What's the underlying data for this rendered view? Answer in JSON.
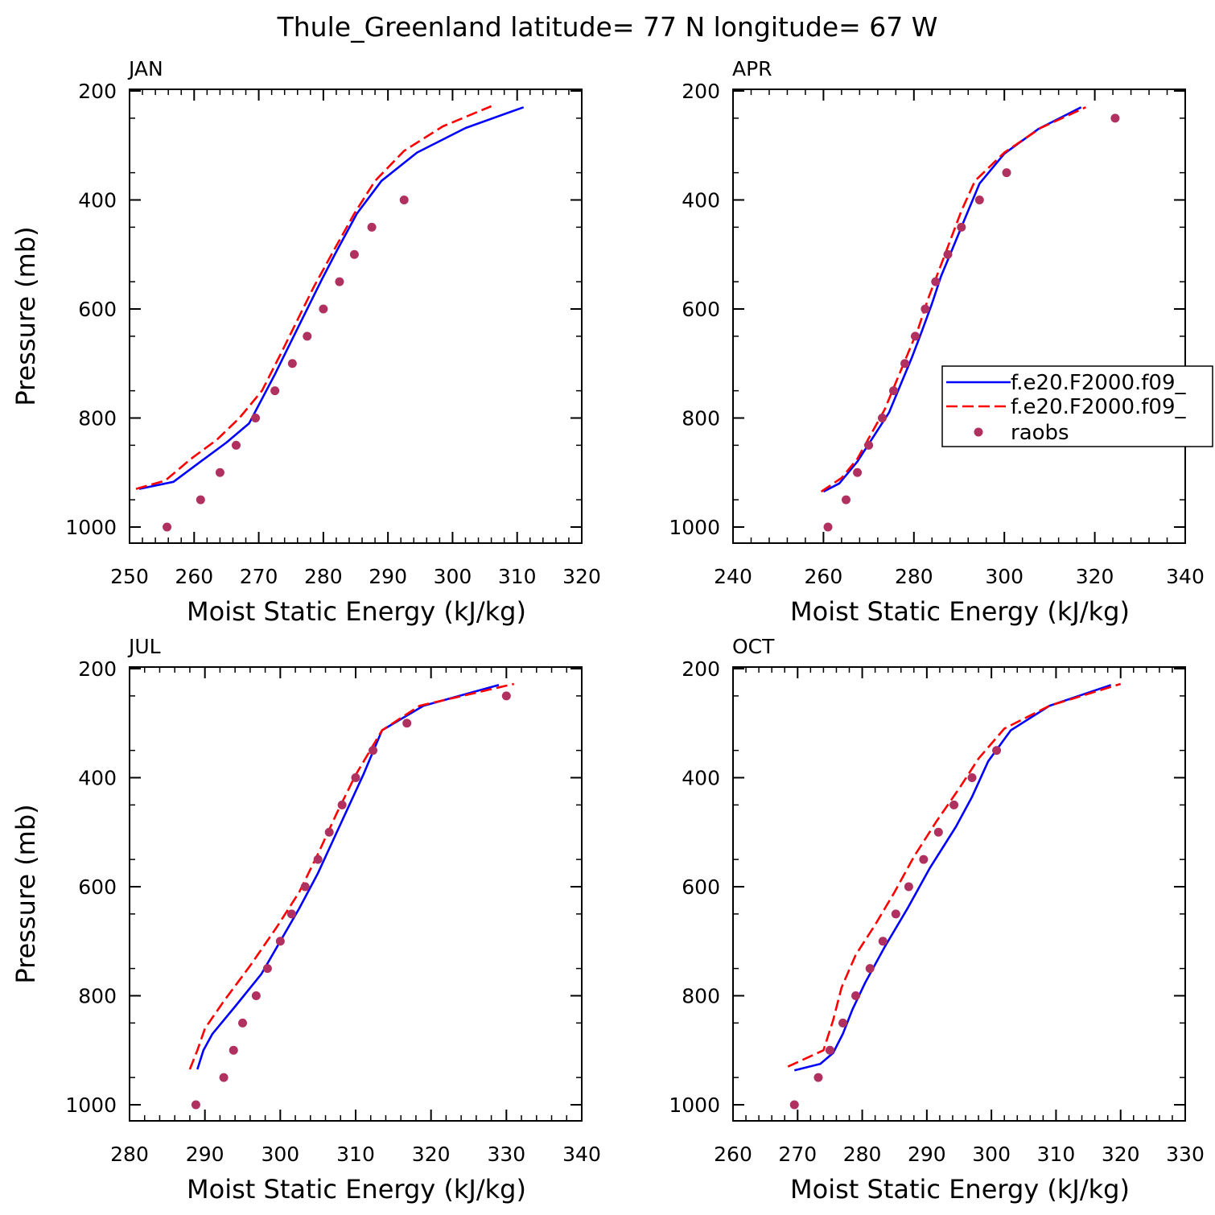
{
  "title": "Thule_Greenland  latitude= 77 N longitude= 67 W",
  "legend": {
    "entries": [
      {
        "label": "f.e20.F2000.f09_",
        "color": "#0000ff",
        "style": "solid"
      },
      {
        "label": "f.e20.F2000.f09_",
        "color": "#ff0000",
        "style": "dashed"
      },
      {
        "label": "raobs",
        "color": "#b03060",
        "style": "marker"
      }
    ]
  },
  "chart_data": [
    {
      "type": "line",
      "panel": "JAN",
      "xlabel": "Moist Static Energy (kJ/kg)",
      "ylabel": "Pressure (mb)",
      "xlim": [
        250,
        320
      ],
      "ylim": [
        1000,
        200
      ],
      "xticks": [
        250,
        260,
        270,
        280,
        290,
        300,
        310,
        320
      ],
      "yticks": [
        200,
        400,
        600,
        800,
        1000
      ],
      "series": [
        {
          "name": "f.e20.F2000.f09_",
          "style": "solid",
          "x": [
            251.5,
            256.8,
            261.0,
            265.0,
            268.5,
            272.5,
            275.2,
            277.5,
            279.8,
            282.0,
            285.2,
            289.0,
            294.5,
            302.0,
            311.0
          ],
          "y": [
            930,
            917,
            880,
            845,
            810,
            720,
            655,
            600,
            545,
            495,
            425,
            365,
            313,
            268,
            230
          ]
        },
        {
          "name": "f.e20.F2000.f09_",
          "style": "dashed",
          "x": [
            251.0,
            255.5,
            259.5,
            263.5,
            267.0,
            270.5,
            273.5,
            276.0,
            278.5,
            281.5,
            284.8,
            288.0,
            292.5,
            298.5,
            306.0
          ],
          "y": [
            930,
            915,
            875,
            840,
            800,
            750,
            680,
            620,
            560,
            495,
            425,
            365,
            310,
            265,
            228
          ]
        },
        {
          "name": "raobs",
          "style": "marker",
          "x": [
            255.8,
            261.0,
            264.0,
            266.5,
            269.5,
            272.5,
            275.2,
            277.5,
            280.0,
            282.5,
            284.8,
            287.5,
            292.5
          ],
          "y": [
            1000,
            950,
            900,
            850,
            800,
            750,
            700,
            650,
            600,
            550,
            500,
            450,
            400
          ]
        }
      ]
    },
    {
      "type": "line",
      "panel": "APR",
      "xlabel": "Moist Static Energy (kJ/kg)",
      "ylabel": "",
      "xlim": [
        240,
        340
      ],
      "ylim": [
        1000,
        200
      ],
      "xticks": [
        240,
        260,
        280,
        300,
        320,
        340
      ],
      "yticks": [
        200,
        400,
        600,
        800,
        1000
      ],
      "series": [
        {
          "name": "f.e20.F2000.f09_",
          "style": "solid",
          "x": [
            260.0,
            263.5,
            267.5,
            271.0,
            274.5,
            277.0,
            279.5,
            281.8,
            284.0,
            286.0,
            288.5,
            291.5,
            294.5,
            300.0,
            307.5,
            317.0
          ],
          "y": [
            935,
            920,
            880,
            835,
            790,
            740,
            690,
            640,
            590,
            540,
            490,
            430,
            370,
            315,
            270,
            230
          ]
        },
        {
          "name": "f.e20.F2000.f09_",
          "style": "dashed",
          "x": [
            259.5,
            264.0,
            267.5,
            270.5,
            273.5,
            276.0,
            278.5,
            281.0,
            283.2,
            285.5,
            288.0,
            290.5,
            293.5,
            300.0,
            308.0,
            318.0
          ],
          "y": [
            935,
            910,
            875,
            830,
            785,
            735,
            685,
            635,
            580,
            530,
            475,
            420,
            365,
            313,
            268,
            230
          ]
        },
        {
          "name": "raobs",
          "style": "marker",
          "x": [
            261.0,
            265.0,
            267.5,
            270.0,
            273.0,
            275.5,
            278.0,
            280.3,
            282.5,
            284.8,
            287.5,
            290.5,
            294.5,
            300.5,
            324.5
          ],
          "y": [
            1000,
            950,
            900,
            850,
            800,
            750,
            700,
            650,
            600,
            550,
            500,
            450,
            400,
            350,
            250
          ]
        }
      ]
    },
    {
      "type": "line",
      "panel": "JUL",
      "xlabel": "Moist Static Energy (kJ/kg)",
      "ylabel": "Pressure (mb)",
      "xlim": [
        280,
        340
      ],
      "ylim": [
        1000,
        200
      ],
      "xticks": [
        280,
        290,
        300,
        310,
        320,
        330,
        340
      ],
      "yticks": [
        200,
        400,
        600,
        800,
        1000
      ],
      "series": [
        {
          "name": "f.e20.F2000.f09_",
          "style": "solid",
          "x": [
            289.0,
            289.8,
            291.0,
            294.0,
            297.5,
            300.0,
            302.5,
            305.0,
            307.0,
            309.0,
            311.0,
            313.5,
            319.0,
            329.0
          ],
          "y": [
            935,
            900,
            870,
            820,
            760,
            700,
            640,
            575,
            515,
            455,
            395,
            313,
            268,
            230
          ]
        },
        {
          "name": "f.e20.F2000.f09_",
          "style": "dashed",
          "x": [
            288.0,
            289.0,
            290.0,
            292.5,
            296.0,
            299.5,
            302.5,
            305.0,
            307.5,
            310.0,
            313.5,
            318.5,
            331.0
          ],
          "y": [
            935,
            900,
            860,
            810,
            745,
            675,
            610,
            540,
            465,
            395,
            313,
            268,
            228
          ]
        },
        {
          "name": "raobs",
          "style": "marker",
          "x": [
            288.8,
            292.5,
            293.8,
            295.0,
            296.8,
            298.3,
            300.0,
            301.5,
            303.3,
            305.0,
            306.5,
            308.2,
            310.0,
            312.3,
            316.8,
            330.0
          ],
          "y": [
            1000,
            950,
            900,
            850,
            800,
            750,
            700,
            650,
            600,
            550,
            500,
            450,
            400,
            350,
            300,
            250
          ]
        }
      ]
    },
    {
      "type": "line",
      "panel": "OCT",
      "xlabel": "Moist Static Energy (kJ/kg)",
      "ylabel": "",
      "xlim": [
        260,
        330
      ],
      "ylim": [
        1000,
        200
      ],
      "xticks": [
        260,
        270,
        280,
        290,
        300,
        310,
        320,
        330
      ],
      "yticks": [
        200,
        400,
        600,
        800,
        1000
      ],
      "series": [
        {
          "name": "f.e20.F2000.f09_",
          "style": "solid",
          "x": [
            269.5,
            273.5,
            275.5,
            277.0,
            278.5,
            280.5,
            283.5,
            287.0,
            290.5,
            294.5,
            297.0,
            299.5,
            303.0,
            309.0,
            318.5
          ],
          "y": [
            937,
            925,
            905,
            870,
            825,
            775,
            710,
            640,
            565,
            490,
            435,
            370,
            313,
            268,
            230
          ]
        },
        {
          "name": "f.e20.F2000.f09_",
          "style": "dashed",
          "x": [
            268.5,
            274.0,
            275.5,
            276.8,
            279.0,
            282.0,
            285.0,
            288.0,
            291.5,
            295.0,
            298.0,
            302.0,
            309.0,
            320.0
          ],
          "y": [
            930,
            900,
            845,
            785,
            725,
            670,
            610,
            545,
            480,
            420,
            365,
            310,
            268,
            228
          ]
        },
        {
          "name": "raobs",
          "style": "marker",
          "x": [
            269.5,
            273.2,
            275.0,
            277.0,
            279.0,
            281.2,
            283.2,
            285.2,
            287.2,
            289.5,
            291.8,
            294.2,
            297.0,
            300.8
          ],
          "y": [
            1000,
            950,
            900,
            850,
            800,
            750,
            700,
            650,
            600,
            550,
            500,
            450,
            400,
            350
          ]
        }
      ]
    }
  ]
}
